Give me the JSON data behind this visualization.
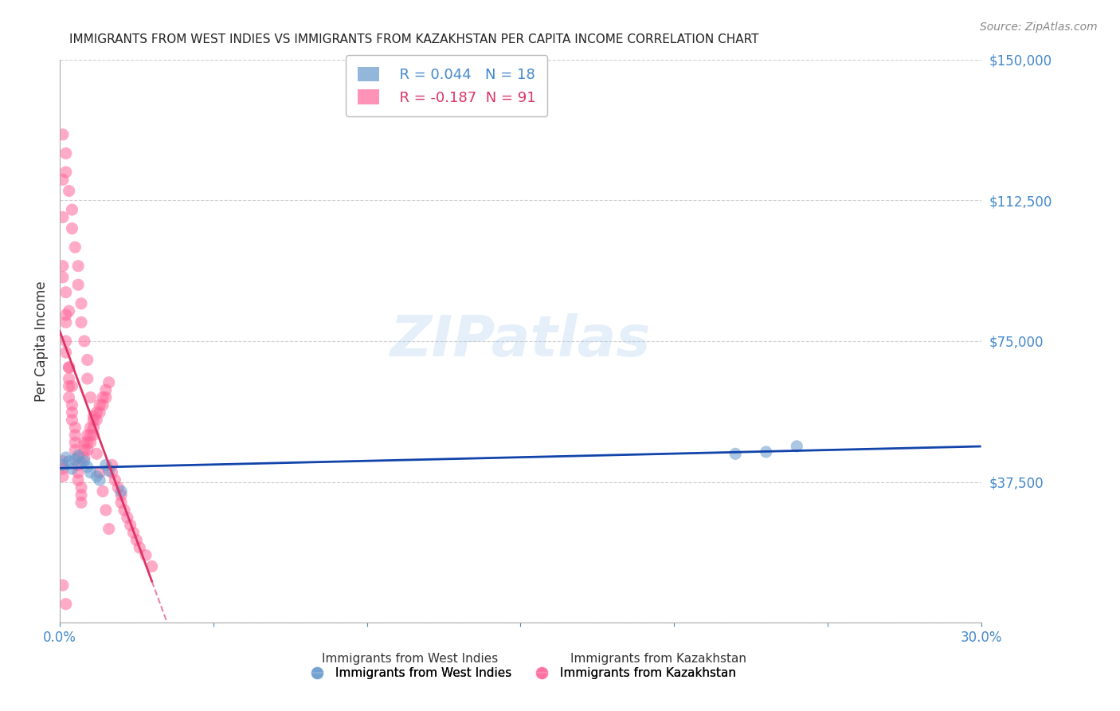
{
  "title": "IMMIGRANTS FROM WEST INDIES VS IMMIGRANTS FROM KAZAKHSTAN PER CAPITA INCOME CORRELATION CHART",
  "source": "Source: ZipAtlas.com",
  "xlabel": "",
  "ylabel": "Per Capita Income",
  "legend_label_1": "Immigrants from West Indies",
  "legend_label_2": "Immigrants from Kazakhstan",
  "r1": "0.044",
  "n1": "18",
  "r2": "-0.187",
  "n2": "91",
  "color_blue": "#6699CC",
  "color_pink": "#FF6699",
  "color_blue_line": "#1144AA",
  "color_pink_line": "#DD3366",
  "color_axis": "#4488CC",
  "watermark": "ZIPatlas",
  "ylim": [
    0,
    150000
  ],
  "xlim": [
    0,
    0.3
  ],
  "yticks": [
    0,
    37500,
    75000,
    112500,
    150000
  ],
  "ytick_labels": [
    "",
    "$37,500",
    "$75,000",
    "$112,500",
    "$150,000"
  ],
  "xticks": [
    0.0,
    0.05,
    0.1,
    0.15,
    0.2,
    0.25,
    0.3
  ],
  "xtick_labels": [
    "0.0%",
    "",
    "",
    "",
    "",
    "",
    "30.0%"
  ],
  "background_color": "#FFFFFF",
  "west_indies_x": [
    0.001,
    0.002,
    0.003,
    0.004,
    0.005,
    0.006,
    0.007,
    0.008,
    0.009,
    0.01,
    0.012,
    0.013,
    0.015,
    0.016,
    0.02,
    0.22,
    0.23,
    0.24
  ],
  "west_indies_y": [
    42000,
    44000,
    43000,
    41000,
    43500,
    44500,
    42500,
    43000,
    41500,
    40000,
    39000,
    38000,
    42000,
    40500,
    35000,
    45000,
    45500,
    47000
  ],
  "kazakhstan_x": [
    0.001,
    0.001,
    0.001,
    0.001,
    0.002,
    0.002,
    0.002,
    0.002,
    0.003,
    0.003,
    0.003,
    0.003,
    0.004,
    0.004,
    0.004,
    0.005,
    0.005,
    0.005,
    0.005,
    0.006,
    0.006,
    0.006,
    0.006,
    0.007,
    0.007,
    0.007,
    0.008,
    0.008,
    0.008,
    0.009,
    0.009,
    0.009,
    0.01,
    0.01,
    0.01,
    0.011,
    0.011,
    0.012,
    0.012,
    0.013,
    0.013,
    0.014,
    0.014,
    0.015,
    0.015,
    0.016,
    0.017,
    0.017,
    0.018,
    0.019,
    0.02,
    0.02,
    0.021,
    0.022,
    0.023,
    0.024,
    0.025,
    0.026,
    0.028,
    0.03,
    0.001,
    0.002,
    0.002,
    0.003,
    0.004,
    0.004,
    0.005,
    0.006,
    0.006,
    0.007,
    0.007,
    0.008,
    0.009,
    0.009,
    0.01,
    0.011,
    0.011,
    0.012,
    0.013,
    0.014,
    0.015,
    0.016,
    0.003,
    0.004,
    0.002,
    0.003,
    0.001,
    0.002,
    0.001,
    0.001,
    0.001
  ],
  "kazakhstan_y": [
    118000,
    108000,
    95000,
    92000,
    82000,
    80000,
    75000,
    72000,
    68000,
    65000,
    63000,
    60000,
    58000,
    56000,
    54000,
    52000,
    50000,
    48000,
    46000,
    44000,
    42000,
    40000,
    38000,
    36000,
    34000,
    32000,
    48000,
    46000,
    44000,
    50000,
    48000,
    46000,
    52000,
    50000,
    48000,
    54000,
    52000,
    56000,
    54000,
    58000,
    56000,
    60000,
    58000,
    62000,
    60000,
    64000,
    42000,
    40000,
    38000,
    36000,
    34000,
    32000,
    30000,
    28000,
    26000,
    24000,
    22000,
    20000,
    18000,
    15000,
    130000,
    125000,
    120000,
    115000,
    110000,
    105000,
    100000,
    95000,
    90000,
    85000,
    80000,
    75000,
    70000,
    65000,
    60000,
    55000,
    50000,
    45000,
    40000,
    35000,
    30000,
    25000,
    68000,
    63000,
    88000,
    83000,
    10000,
    5000,
    43000,
    41000,
    39000
  ]
}
